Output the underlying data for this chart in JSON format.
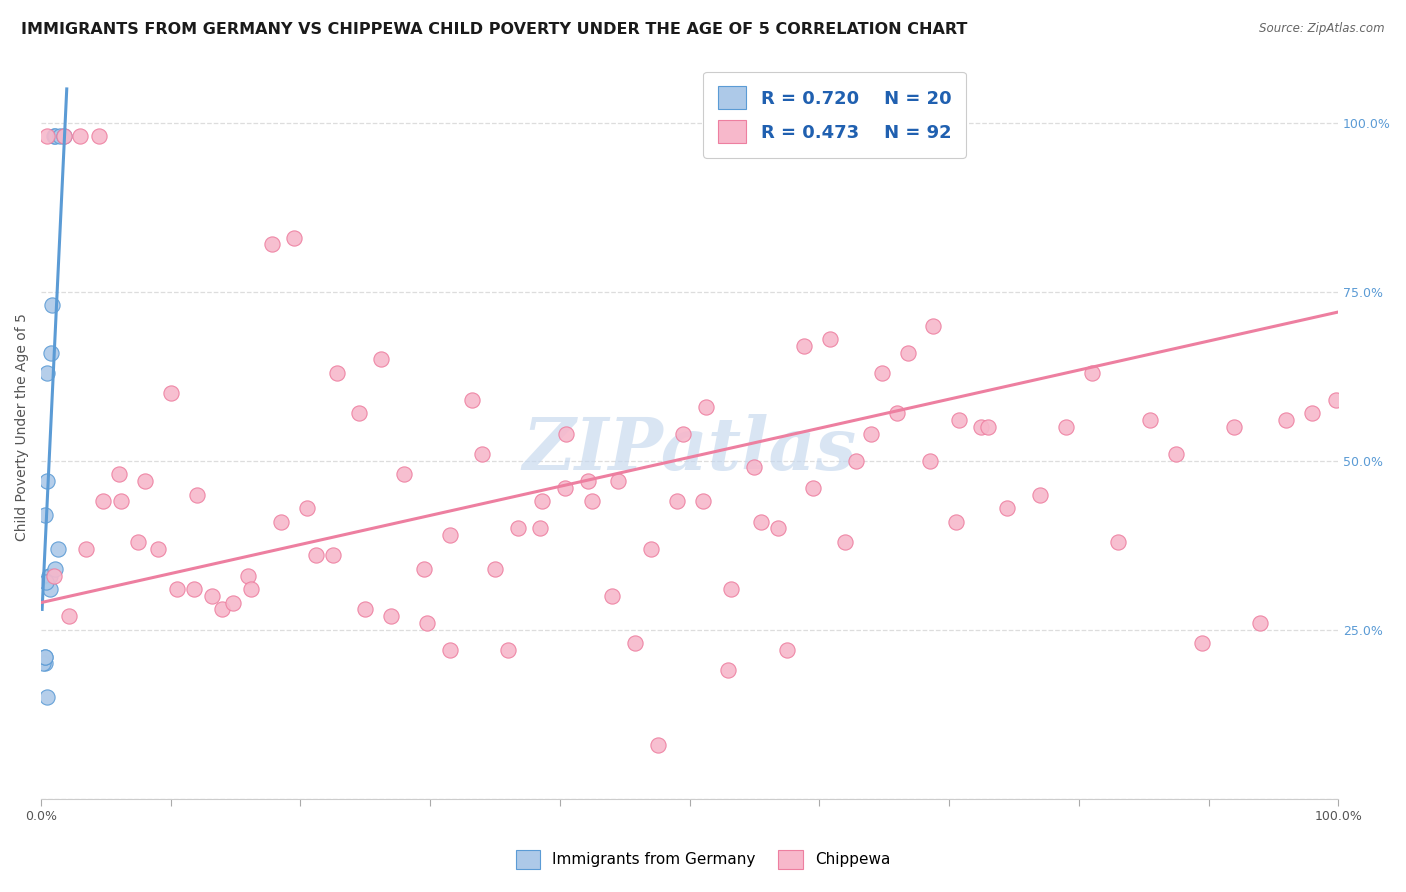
{
  "title": "IMMIGRANTS FROM GERMANY VS CHIPPEWA CHILD POVERTY UNDER THE AGE OF 5 CORRELATION CHART",
  "source": "Source: ZipAtlas.com",
  "ylabel": "Child Poverty Under the Age of 5",
  "watermark": "ZIPatlas",
  "legend_label1": "Immigrants from Germany",
  "legend_label2": "Chippewa",
  "r1": "0.720",
  "n1": "20",
  "r2": "0.473",
  "n2": "92",
  "color1": "#adc9e8",
  "color2": "#f7b8cb",
  "line_color1": "#5b9bd5",
  "line_color2": "#ed7fa0",
  "scatter1_x": [
    0.005,
    0.01,
    0.011,
    0.015,
    0.018,
    0.003,
    0.005,
    0.006,
    0.007,
    0.007,
    0.008,
    0.009,
    0.011,
    0.003,
    0.004,
    0.002,
    0.003,
    0.003,
    0.013,
    0.005
  ],
  "scatter1_y": [
    0.63,
    0.98,
    0.98,
    0.98,
    0.98,
    0.42,
    0.47,
    0.33,
    0.33,
    0.31,
    0.66,
    0.73,
    0.34,
    0.2,
    0.32,
    0.2,
    0.21,
    0.21,
    0.37,
    0.15
  ],
  "scatter2_x": [
    0.005,
    0.018,
    0.03,
    0.045,
    0.06,
    0.08,
    0.1,
    0.12,
    0.14,
    0.16,
    0.185,
    0.205,
    0.225,
    0.25,
    0.27,
    0.295,
    0.315,
    0.34,
    0.36,
    0.385,
    0.405,
    0.425,
    0.445,
    0.47,
    0.49,
    0.51,
    0.53,
    0.555,
    0.575,
    0.595,
    0.62,
    0.64,
    0.66,
    0.685,
    0.705,
    0.725,
    0.745,
    0.77,
    0.79,
    0.81,
    0.83,
    0.855,
    0.875,
    0.895,
    0.92,
    0.94,
    0.96,
    0.98,
    0.998,
    0.01,
    0.022,
    0.035,
    0.048,
    0.062,
    0.075,
    0.09,
    0.105,
    0.118,
    0.132,
    0.148,
    0.162,
    0.178,
    0.195,
    0.212,
    0.228,
    0.245,
    0.262,
    0.28,
    0.298,
    0.315,
    0.332,
    0.35,
    0.368,
    0.386,
    0.404,
    0.422,
    0.44,
    0.458,
    0.476,
    0.495,
    0.513,
    0.532,
    0.55,
    0.568,
    0.588,
    0.608,
    0.628,
    0.648,
    0.668,
    0.688,
    0.708,
    0.73
  ],
  "scatter2_y": [
    0.98,
    0.98,
    0.98,
    0.98,
    0.48,
    0.47,
    0.6,
    0.45,
    0.28,
    0.33,
    0.41,
    0.43,
    0.36,
    0.28,
    0.27,
    0.34,
    0.22,
    0.51,
    0.22,
    0.4,
    0.54,
    0.44,
    0.47,
    0.37,
    0.44,
    0.44,
    0.19,
    0.41,
    0.22,
    0.46,
    0.38,
    0.54,
    0.57,
    0.5,
    0.41,
    0.55,
    0.43,
    0.45,
    0.55,
    0.63,
    0.38,
    0.56,
    0.51,
    0.23,
    0.55,
    0.26,
    0.56,
    0.57,
    0.59,
    0.33,
    0.27,
    0.37,
    0.44,
    0.44,
    0.38,
    0.37,
    0.31,
    0.31,
    0.3,
    0.29,
    0.31,
    0.82,
    0.83,
    0.36,
    0.63,
    0.57,
    0.65,
    0.48,
    0.26,
    0.39,
    0.59,
    0.34,
    0.4,
    0.44,
    0.46,
    0.47,
    0.3,
    0.23,
    0.08,
    0.54,
    0.58,
    0.31,
    0.49,
    0.4,
    0.67,
    0.68,
    0.5,
    0.63,
    0.66,
    0.7,
    0.56,
    0.55
  ],
  "trendline1_x": [
    0.001,
    0.02
  ],
  "trendline1_y": [
    0.28,
    1.05
  ],
  "trendline2_x": [
    0.0,
    1.0
  ],
  "trendline2_y": [
    0.29,
    0.72
  ],
  "xlim": [
    0.0,
    1.0
  ],
  "ylim": [
    0.0,
    1.1
  ],
  "yticks": [
    0.0,
    0.25,
    0.5,
    0.75,
    1.0
  ],
  "xticks": [
    0.0,
    0.1,
    0.2,
    0.3,
    0.4,
    0.5,
    0.6,
    0.7,
    0.8,
    0.9,
    1.0
  ],
  "background_color": "#ffffff",
  "grid_color": "#dddddd",
  "title_fontsize": 11.5,
  "axis_label_fontsize": 10,
  "tick_fontsize": 9,
  "watermark_fontsize": 52,
  "watermark_color": "#c5d8ee",
  "scatter_size": 120,
  "legend_fontsize": 13
}
